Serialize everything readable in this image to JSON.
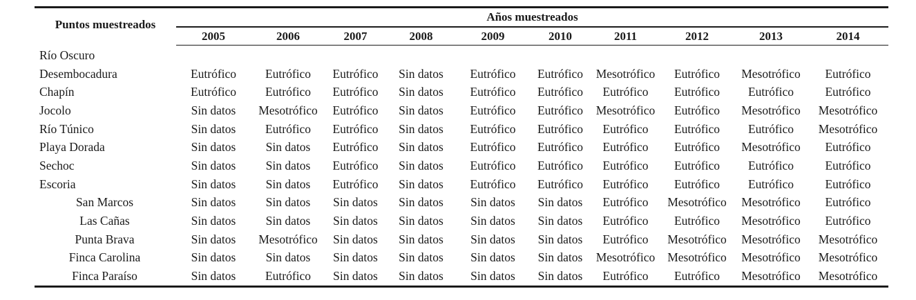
{
  "table": {
    "row_header_label": "Puntos muestreados",
    "group_label": "Años muestreados",
    "years": [
      "2005",
      "2006",
      "2007",
      "2008",
      "2009",
      "2010",
      "2011",
      "2012",
      "2013",
      "2014"
    ],
    "rows": [
      {
        "name": "Río Oscuro",
        "indented": false,
        "values": [
          "",
          "",
          "",
          "",
          "",
          "",
          "",
          "",
          "",
          ""
        ]
      },
      {
        "name": "Desembocadura",
        "indented": false,
        "values": [
          "Eutrófico",
          "Eutrófico",
          "Eutrófico",
          "Sin datos",
          "Eutrófico",
          "Eutrófico",
          "Mesotrófico",
          "Eutrófico",
          "Mesotrófico",
          "Eutrófico"
        ]
      },
      {
        "name": "Chapín",
        "indented": false,
        "values": [
          "Eutrófico",
          "Eutrófico",
          "Eutrófico",
          "Sin datos",
          "Eutrófico",
          "Eutrófico",
          "Eutrófico",
          "Eutrófico",
          "Eutrófico",
          "Eutrófico"
        ]
      },
      {
        "name": "Jocolo",
        "indented": false,
        "values": [
          "Sin datos",
          "Mesotrófico",
          "Eutrófico",
          "Sin datos",
          "Eutrófico",
          "Eutrófico",
          "Mesotrófico",
          "Eutrófico",
          "Mesotrófico",
          "Mesotrófico"
        ]
      },
      {
        "name": "Río Túnico",
        "indented": false,
        "values": [
          "Sin datos",
          "Eutrófico",
          "Eutrófico",
          "Sin datos",
          "Eutrófico",
          "Eutrófico",
          "Eutrófico",
          "Eutrófico",
          "Eutrófico",
          "Mesotrófico"
        ]
      },
      {
        "name": "Playa Dorada",
        "indented": false,
        "values": [
          "Sin datos",
          "Sin datos",
          "Eutrófico",
          "Sin datos",
          "Eutrófico",
          "Eutrófico",
          "Eutrófico",
          "Eutrófico",
          "Mesotrófico",
          "Eutrófico"
        ]
      },
      {
        "name": "Sechoc",
        "indented": false,
        "values": [
          "Sin datos",
          "Sin datos",
          "Eutrófico",
          "Sin datos",
          "Eutrófico",
          "Eutrófico",
          "Eutrófico",
          "Eutrófico",
          "Eutrófico",
          "Eutrófico"
        ]
      },
      {
        "name": "Escoria",
        "indented": false,
        "values": [
          "Sin datos",
          "Sin datos",
          "Eutrófico",
          "Sin datos",
          "Eutrófico",
          "Eutrófico",
          "Eutrófico",
          "Eutrófico",
          "Eutrófico",
          "Eutrófico"
        ]
      },
      {
        "name": "San Marcos",
        "indented": true,
        "values": [
          "Sin datos",
          "Sin datos",
          "Sin datos",
          "Sin datos",
          "Sin datos",
          "Sin datos",
          "Eutrófico",
          "Mesotrófico",
          "Mesotrófico",
          "Eutrófico"
        ]
      },
      {
        "name": "Las Cañas",
        "indented": true,
        "values": [
          "Sin datos",
          "Sin datos",
          "Sin datos",
          "Sin datos",
          "Sin datos",
          "Sin datos",
          "Eutrófico",
          "Eutrófico",
          "Mesotrófico",
          "Eutrófico"
        ]
      },
      {
        "name": "Punta Brava",
        "indented": true,
        "values": [
          "Sin datos",
          "Mesotrófico",
          "Sin datos",
          "Sin datos",
          "Sin datos",
          "Sin datos",
          "Eutrófico",
          "Mesotrófico",
          "Mesotrófico",
          "Mesotrófico"
        ]
      },
      {
        "name": "Finca Carolina",
        "indented": true,
        "values": [
          "Sin datos",
          "Sin datos",
          "Sin datos",
          "Sin datos",
          "Sin datos",
          "Sin datos",
          "Mesotrófico",
          "Mesotrófico",
          "Mesotrófico",
          "Mesotrófico"
        ]
      },
      {
        "name": "Finca Paraíso",
        "indented": true,
        "values": [
          "Sin datos",
          "Eutrófico",
          "Sin datos",
          "Sin datos",
          "Sin datos",
          "Sin datos",
          "Eutrófico",
          "Eutrófico",
          "Mesotrófico",
          "Mesotrófico"
        ]
      }
    ]
  }
}
